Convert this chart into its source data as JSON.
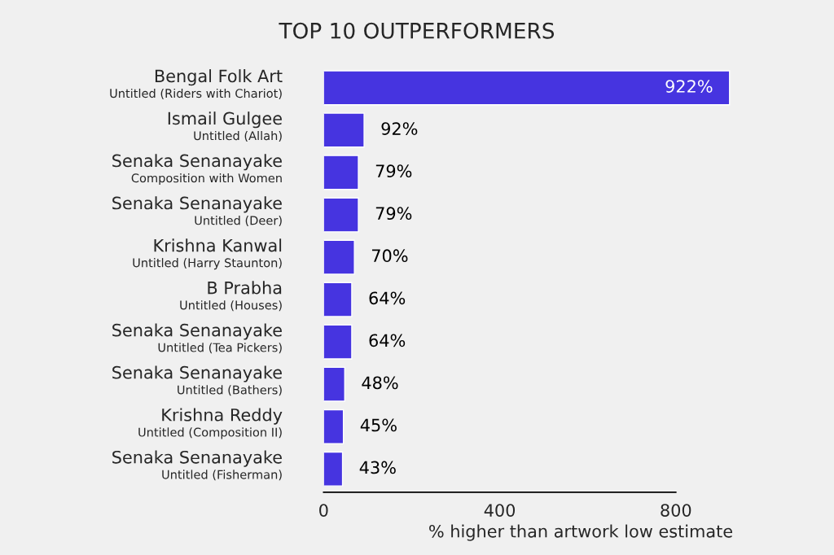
{
  "chart_data": {
    "type": "bar",
    "orientation": "horizontal",
    "title": "TOP 10 OUTPERFORMERS",
    "xlabel": "% higher than artwork low estimate",
    "categories": [
      "Bengal Folk Art\nUntitled (Riders with Chariot)",
      "Ismail Gulgee\nUntitled (Allah)",
      "Senaka Senanayake\nComposition with Women",
      "Senaka Senanayake\nUntitled (Deer)",
      "Krishna Kanwal\nUntitled (Harry Staunton)",
      "B Prabha\nUntitled (Houses)",
      "Senaka Senanayake\nUntitled (Tea Pickers)",
      "Senaka Senanayake\nUntitled (Bathers)",
      "Krishna Reddy\nUntitled (Composition II)",
      "Senaka Senanayake\nUntitled (Fisherman)"
    ],
    "values": [
      922,
      92,
      79,
      79,
      70,
      64,
      64,
      48,
      45,
      43
    ],
    "value_labels": [
      "922%",
      "92%",
      "79%",
      "79%",
      "70%",
      "64%",
      "64%",
      "48%",
      "45%",
      "43%"
    ],
    "color": "#4634e0",
    "xlim": [
      0,
      930
    ],
    "xticks": [
      0,
      400,
      800
    ],
    "grid": false,
    "legend": false
  }
}
